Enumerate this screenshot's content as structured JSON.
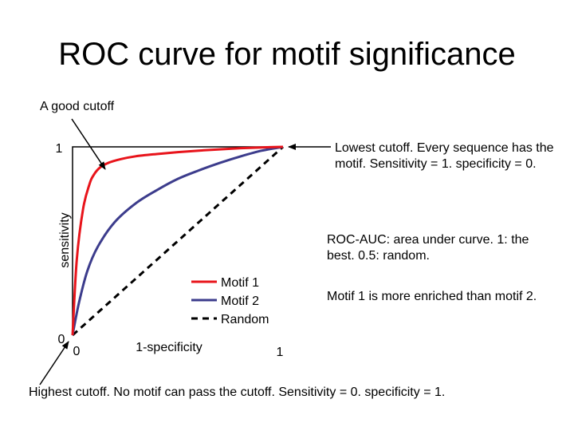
{
  "slide": {
    "title": "ROC curve for motif significance"
  },
  "annotations": {
    "good_cutoff": "A good cutoff",
    "lowest_cutoff": "Lowest cutoff. Every sequence has the motif. Sensitivity = 1. specificity = 0.",
    "roc_auc": "ROC-AUC: area under curve. 1: the best. 0.5: random.",
    "enriched": "Motif 1 is more enriched than motif 2.",
    "highest_cutoff": "Highest cutoff. No motif can pass the cutoff. Sensitivity = 0. specificity = 1."
  },
  "chart_data": {
    "type": "line",
    "xlabel": "1-specificity",
    "ylabel": "sensitivity",
    "xlim": [
      0,
      1
    ],
    "ylim": [
      0,
      1
    ],
    "x_ticks": [
      "0",
      "1"
    ],
    "y_ticks": [
      "0",
      "1"
    ],
    "legend_position": "lower-right",
    "grid": false,
    "series": [
      {
        "name": "Motif 1",
        "color": "#e8141b",
        "style": "solid",
        "x": [
          0,
          0.02,
          0.05,
          0.08,
          0.1,
          0.13,
          0.17,
          0.23,
          0.3,
          0.4,
          0.5,
          0.6,
          0.7,
          0.8,
          0.9,
          1
        ],
        "y": [
          0,
          0.4,
          0.67,
          0.8,
          0.85,
          0.89,
          0.915,
          0.935,
          0.95,
          0.962,
          0.972,
          0.98,
          0.987,
          0.993,
          0.997,
          1
        ]
      },
      {
        "name": "Motif 2",
        "color": "#3c3c8c",
        "style": "solid",
        "x": [
          0,
          0.03,
          0.07,
          0.12,
          0.2,
          0.3,
          0.4,
          0.5,
          0.6,
          0.7,
          0.8,
          0.9,
          1
        ],
        "y": [
          0,
          0.17,
          0.34,
          0.47,
          0.6,
          0.7,
          0.77,
          0.83,
          0.875,
          0.915,
          0.95,
          0.98,
          1
        ]
      },
      {
        "name": "Random",
        "color": "#000000",
        "style": "dashed",
        "x": [
          0,
          1
        ],
        "y": [
          0,
          1
        ]
      }
    ]
  }
}
